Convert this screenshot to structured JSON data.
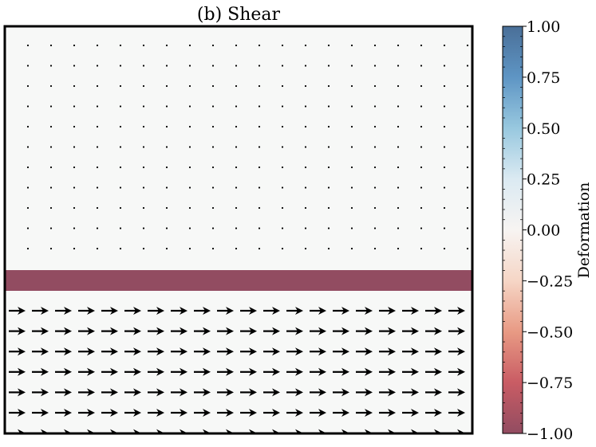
{
  "chart_data": {
    "type": "heatmap",
    "title": "(b) Shear",
    "field": {
      "background_value": 0.0,
      "band": {
        "value": -1.0,
        "row_range": [
          -1,
          0
        ]
      }
    },
    "quiver": {
      "top_region": {
        "rows": 11,
        "cols": 20,
        "u": 0.0,
        "v": 0.0
      },
      "bottom_region": {
        "rows": 7,
        "cols": 20,
        "u": 1.0,
        "v": 0.0
      }
    },
    "colorbar": {
      "label": "Deformation",
      "colormap": "RdBu",
      "vmin": -1.0,
      "vmax": 1.0,
      "ticks": [
        "1.00",
        "0.75",
        "0.50",
        "0.25",
        "0.00",
        "−0.25",
        "−0.50",
        "−0.75",
        "−1.00"
      ],
      "tick_values": [
        1.0,
        0.75,
        0.5,
        0.25,
        0.0,
        -0.25,
        -0.5,
        -0.75,
        -1.0
      ],
      "stops": [
        {
          "value": 1.0,
          "color": "#4a6f98"
        },
        {
          "value": 0.75,
          "color": "#5e95c4"
        },
        {
          "value": 0.5,
          "color": "#98c8df"
        },
        {
          "value": 0.25,
          "color": "#dbeaf2"
        },
        {
          "value": 0.0,
          "color": "#f7f4f2"
        },
        {
          "value": -0.25,
          "color": "#f6d6c6"
        },
        {
          "value": -0.5,
          "color": "#e89a84"
        },
        {
          "value": -0.75,
          "color": "#c95c64"
        },
        {
          "value": -1.0,
          "color": "#924c61"
        }
      ]
    },
    "colors": {
      "background": "#f7f8f7",
      "band": "#924c61",
      "arrow": "#000000"
    }
  }
}
